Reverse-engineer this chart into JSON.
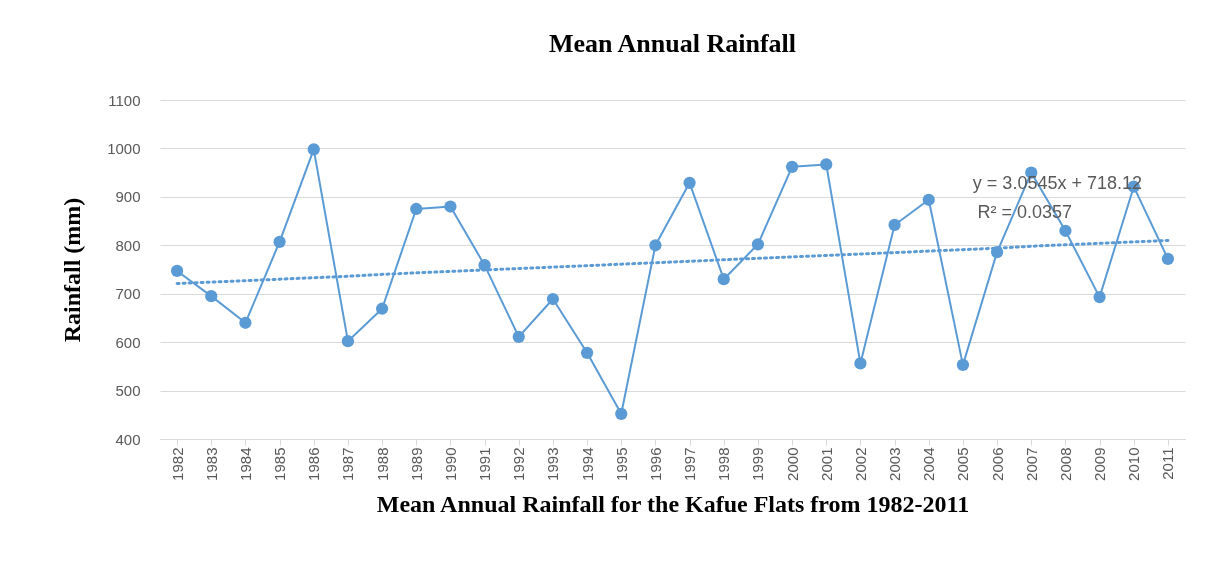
{
  "chart_data": {
    "type": "line",
    "title": "Mean Annual Rainfall",
    "xlabel": "Mean Annual Rainfall  for the Kafue Flats from 1982-2011",
    "ylabel": "Rainfall (mm)",
    "categories": [
      "1982",
      "1983",
      "1984",
      "1985",
      "1986",
      "1987",
      "1988",
      "1989",
      "1990",
      "1991",
      "1992",
      "1993",
      "1994",
      "1995",
      "1996",
      "1997",
      "1998",
      "1999",
      "2000",
      "2001",
      "2002",
      "2003",
      "2004",
      "2005",
      "2006",
      "2007",
      "2008",
      "2009",
      "2010",
      "2011"
    ],
    "series": [
      {
        "color": "#5b9bd5",
        "marker": "circle",
        "line_style": "solid",
        "values": [
          747,
          695,
          640,
          807,
          998,
          602,
          669,
          875,
          880,
          759,
          611,
          689,
          578,
          452,
          800,
          929,
          730,
          802,
          962,
          967,
          556,
          842,
          894,
          553,
          786,
          950,
          830,
          693,
          921,
          772
        ]
      },
      {
        "type": "line",
        "color": "#5b9bd5",
        "marker": "none",
        "line_style": "dotted",
        "values": [
          721,
          724,
          727,
          730,
          733,
          736,
          740,
          743,
          746,
          749,
          752,
          755,
          758,
          761,
          764,
          767,
          770,
          773,
          776,
          779,
          782,
          785,
          788,
          791,
          794,
          798,
          801,
          804,
          807,
          810
        ]
      }
    ],
    "ylim": [
      400,
      1100
    ],
    "yticks": [
      400,
      500,
      600,
      700,
      800,
      900,
      1000,
      1100
    ],
    "grid": "y",
    "legend": false,
    "annotations": [
      "y = 3.0545x + 718.12",
      "R² = 0.0357"
    ]
  }
}
